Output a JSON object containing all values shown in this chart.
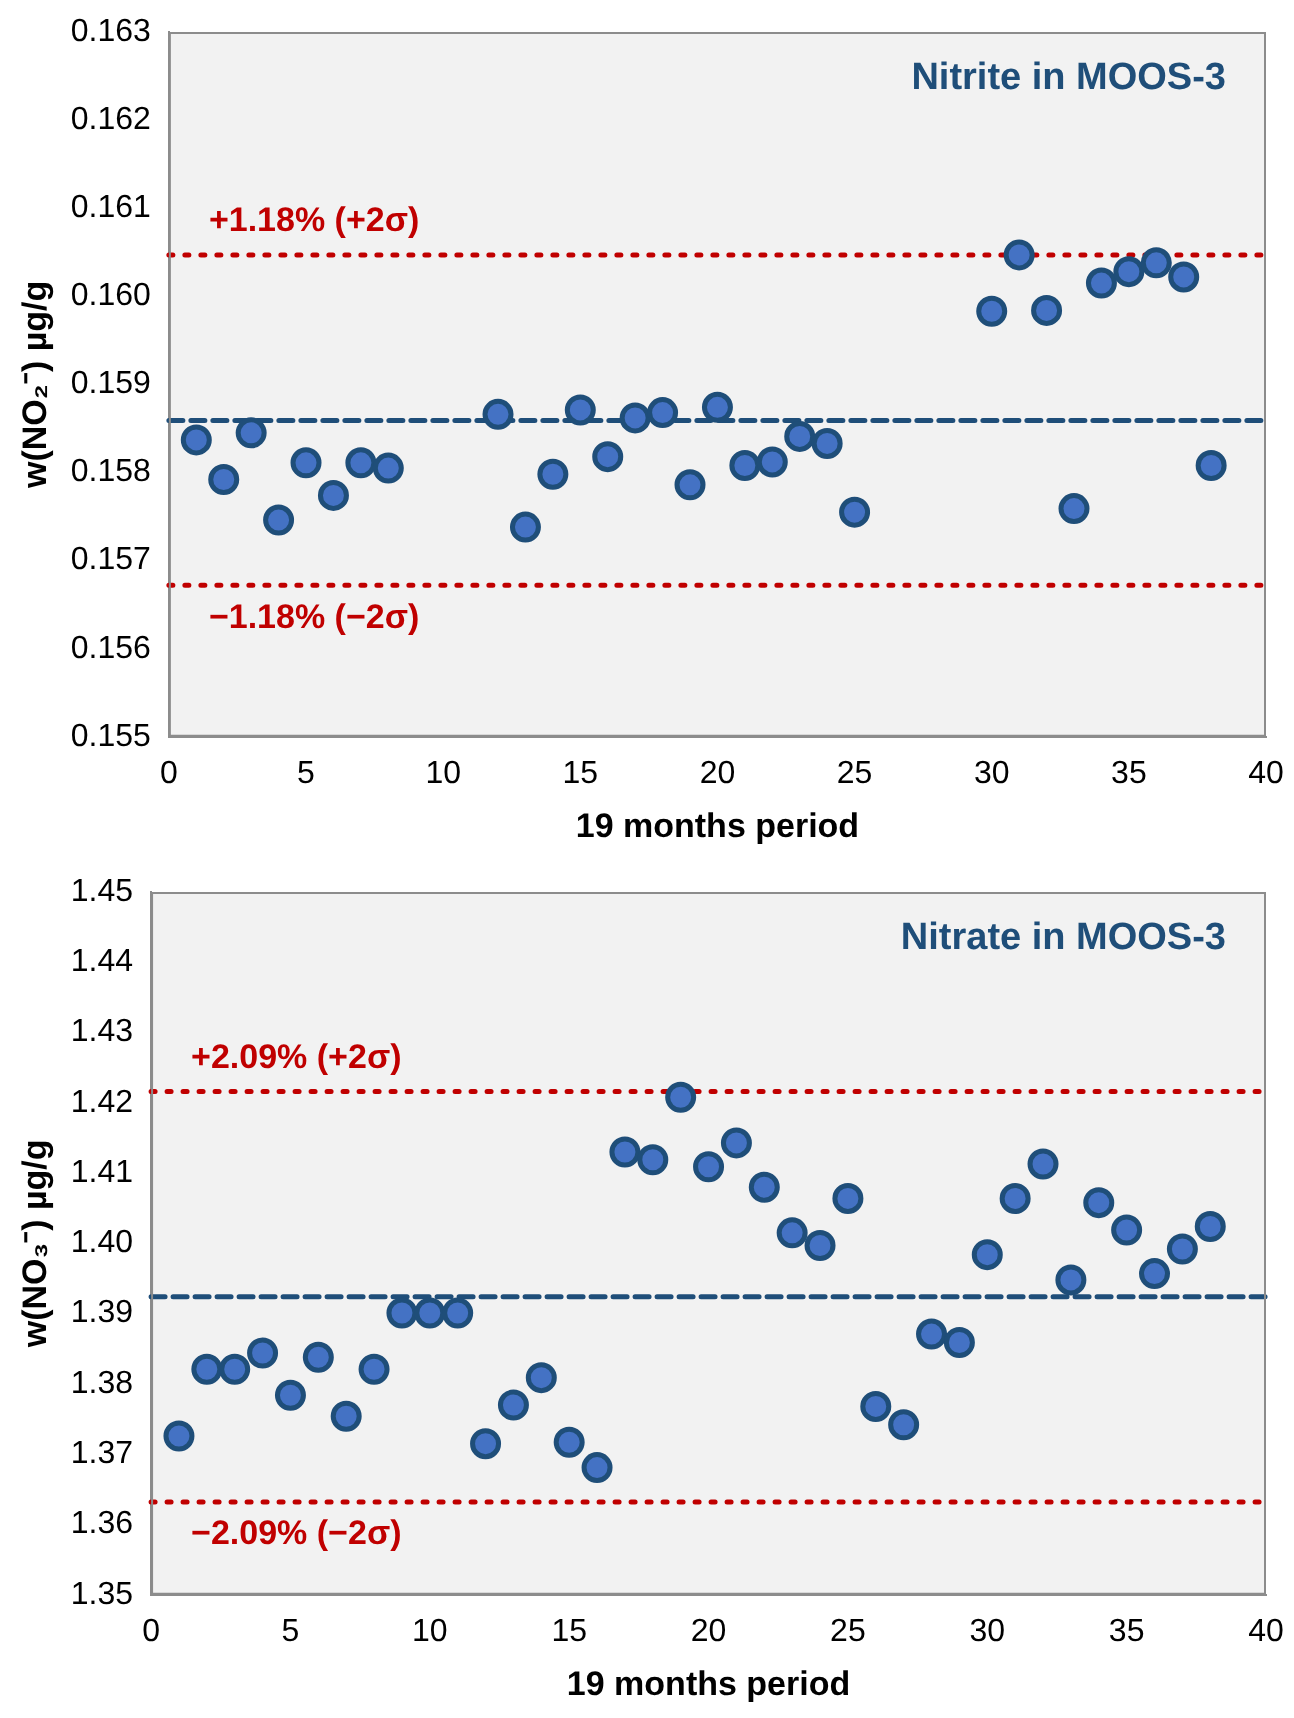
{
  "chart_data": [
    {
      "type": "scatter",
      "title": "Nitrite in MOOS-3",
      "xlabel": "19 months period",
      "ylabel": "w(NO₂⁻) µg/g",
      "x": [
        1,
        2,
        3,
        4,
        5,
        6,
        7,
        8,
        12,
        13,
        14,
        15,
        16,
        17,
        18,
        19,
        20,
        21,
        22,
        23,
        24,
        25,
        30,
        31,
        32,
        33,
        34,
        35,
        36,
        37,
        38
      ],
      "series": [
        {
          "color": "#4472c4",
          "values": [
            0.15837,
            0.15792,
            0.15845,
            0.15746,
            0.15811,
            0.15774,
            0.15811,
            0.15805,
            0.15866,
            0.15738,
            0.15798,
            0.15871,
            0.15818,
            0.15862,
            0.15868,
            0.15786,
            0.15874,
            0.15808,
            0.15812,
            0.15841,
            0.15833,
            0.15755,
            0.15983,
            0.16047,
            0.15984,
            0.15759,
            0.16015,
            0.16028,
            0.16038,
            0.16022,
            0.15808
          ]
        }
      ],
      "marker": "circle",
      "xlim": [
        0,
        40
      ],
      "xticks": [
        0,
        5,
        10,
        15,
        20,
        25,
        30,
        35,
        40
      ],
      "ylim": [
        0.155,
        0.163
      ],
      "yticks": [
        0.155,
        0.156,
        0.157,
        0.158,
        0.159,
        {
          "value": 0.16,
          "label": "0.160"
        },
        0.161,
        0.162,
        0.163
      ],
      "grid": false,
      "legend": false,
      "ref_lines": [
        {
          "axis": "y",
          "value": 0.16047,
          "label": "+1.18% (+2σ)",
          "color": "#c00000",
          "line_style": "dotted"
        },
        {
          "axis": "y",
          "value": 0.15859,
          "color": "#1f4e79",
          "line_style": "dashed"
        },
        {
          "axis": "y",
          "value": 0.15672,
          "label": "−1.18% (−2σ)",
          "color": "#c00000",
          "line_style": "dotted"
        }
      ]
    },
    {
      "type": "scatter",
      "title": "Nitrate in MOOS-3",
      "xlabel": "19 months period",
      "ylabel": "w(NO₃⁻) µg/g",
      "x": [
        1,
        2,
        3,
        4,
        5,
        6,
        7,
        8,
        9,
        10,
        11,
        12,
        13,
        14,
        15,
        16,
        17,
        18,
        19,
        20,
        21,
        22,
        23,
        24,
        25,
        26,
        27,
        28,
        29,
        30,
        31,
        32,
        33,
        34,
        35,
        36,
        37,
        38
      ],
      "series": [
        {
          "color": "#4472c4",
          "values": [
            1.3726,
            1.3821,
            1.3821,
            1.3844,
            1.3784,
            1.3838,
            1.3754,
            1.3821,
            1.3901,
            1.3901,
            1.3901,
            1.3715,
            1.377,
            1.3809,
            1.3717,
            1.3681,
            1.413,
            1.4119,
            1.4208,
            1.4109,
            1.4143,
            1.408,
            1.4015,
            1.3997,
            1.4064,
            1.3768,
            1.3742,
            1.3871,
            1.3859,
            1.3984,
            1.4064,
            1.4113,
            1.3948,
            1.4058,
            1.4019,
            1.3957,
            1.3992,
            1.4024
          ]
        }
      ],
      "marker": "circle",
      "xlim": [
        0,
        40
      ],
      "xticks": [
        0,
        5,
        10,
        15,
        20,
        25,
        30,
        35,
        40
      ],
      "ylim": [
        1.35,
        1.45
      ],
      "yticks": [
        1.35,
        1.36,
        1.37,
        1.38,
        1.39,
        {
          "value": 1.4,
          "label": "1.40"
        },
        1.41,
        1.42,
        1.43,
        1.44,
        1.45
      ],
      "grid": false,
      "legend": false,
      "ref_lines": [
        {
          "axis": "y",
          "value": 1.4216,
          "label": "+2.09% (+2σ)",
          "color": "#c00000",
          "line_style": "dotted"
        },
        {
          "axis": "y",
          "value": 1.3924,
          "color": "#1f4e79",
          "line_style": "dashed"
        },
        {
          "axis": "y",
          "value": 1.3632,
          "label": "−2.09% (−2σ)",
          "color": "#c00000",
          "line_style": "dotted"
        }
      ]
    }
  ]
}
